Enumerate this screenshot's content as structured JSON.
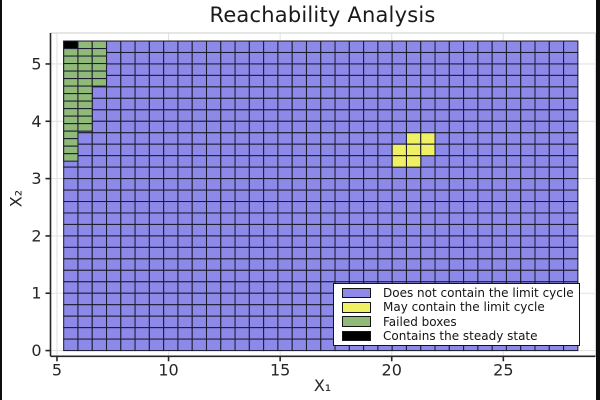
{
  "title": "Reachability Analysis",
  "axes": {
    "x_label": "X₁",
    "y_label": "X₂",
    "x_ticks": [
      "5",
      "10",
      "15",
      "20",
      "25"
    ],
    "x_tick_values": [
      5,
      10,
      15,
      20,
      25
    ],
    "y_ticks": [
      "0",
      "1",
      "2",
      "3",
      "4",
      "5"
    ],
    "y_tick_values": [
      0,
      1,
      2,
      3,
      4,
      5
    ]
  },
  "colors": {
    "does_not_contain": "#8d89e9",
    "may_contain": "#f0f064",
    "failed": "#8fba78",
    "steady_state": "#000000",
    "box_stroke": "#1e1e32",
    "spine": "#262626",
    "gridline": "#e3e3e3",
    "frame_light": "#d8d8d8",
    "legend_border": "#141414",
    "background": "#ffffff"
  },
  "legend": {
    "entries": [
      {
        "label": "Does not contain the limit cycle",
        "color_key": "does_not_contain"
      },
      {
        "label": "May contain the limit cycle",
        "color_key": "may_contain"
      },
      {
        "label": "Failed boxes",
        "color_key": "failed"
      },
      {
        "label": "Contains the steady state",
        "color_key": "steady_state"
      }
    ]
  },
  "chart_data": {
    "type": "heatmap",
    "title": "Reachability Analysis",
    "xlabel": "X₁",
    "ylabel": "X₂",
    "xlim": [
      4.71,
      29.13
    ],
    "ylim": [
      -0.1,
      5.54
    ],
    "grid_on": true,
    "legend_position": "bottom-right",
    "box_grid": {
      "category": "does_not_contain_limit_cycle",
      "x0": 5.3,
      "y_top": 5.4,
      "n_cols": 36,
      "n_rows": 27,
      "cell_w": 0.64,
      "cell_h": 0.2
    },
    "failed_boxes": {
      "cell_w": 0.64,
      "cell_h": 0.131,
      "columns": [
        {
          "x0": 5.3,
          "y_top": 5.269,
          "count": 15
        },
        {
          "x0": 5.94,
          "y_top": 5.4,
          "count": 12
        },
        {
          "x0": 6.58,
          "y_top": 5.4,
          "count": 6
        }
      ]
    },
    "steady_state_boxes": [
      {
        "x0": 5.3,
        "y_top": 5.4,
        "w": 0.64,
        "h": 0.131
      }
    ],
    "may_contain_boxes": {
      "cell_w": 0.64,
      "cell_h": 0.2,
      "cells": [
        {
          "x0": 20.66,
          "y_top": 3.8
        },
        {
          "x0": 21.3,
          "y_top": 3.8
        },
        {
          "x0": 20.02,
          "y_top": 3.6
        },
        {
          "x0": 20.66,
          "y_top": 3.6
        },
        {
          "x0": 21.3,
          "y_top": 3.6
        },
        {
          "x0": 20.02,
          "y_top": 3.4
        },
        {
          "x0": 20.66,
          "y_top": 3.4
        }
      ]
    }
  }
}
